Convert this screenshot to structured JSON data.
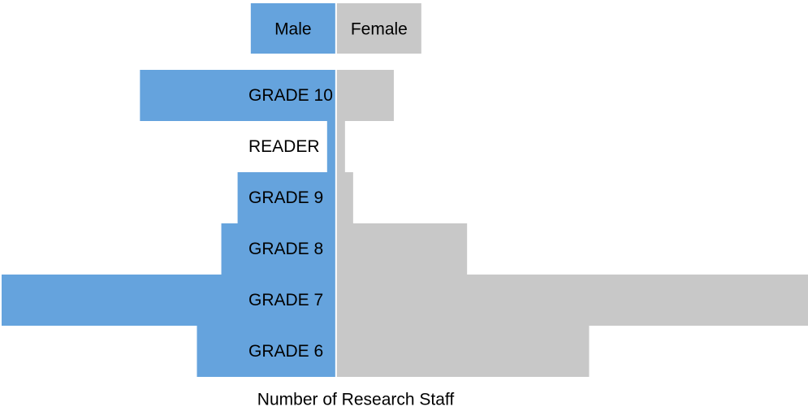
{
  "chart_data": {
    "type": "pyramid",
    "xlabel": "Number of Research Staff",
    "categories": [
      "GRADE 10",
      "READER",
      "GRADE 9",
      "GRADE 8",
      "GRADE 7",
      "GRADE 6"
    ],
    "series": [
      {
        "name": "Male",
        "color": "#65a3dd",
        "values": [
          24,
          1,
          12,
          14,
          41,
          17
        ]
      },
      {
        "name": "Female",
        "color": "#c8c8c8",
        "values": [
          7,
          1,
          2,
          16,
          58,
          31
        ]
      }
    ],
    "xlim": [
      -41,
      58
    ]
  }
}
